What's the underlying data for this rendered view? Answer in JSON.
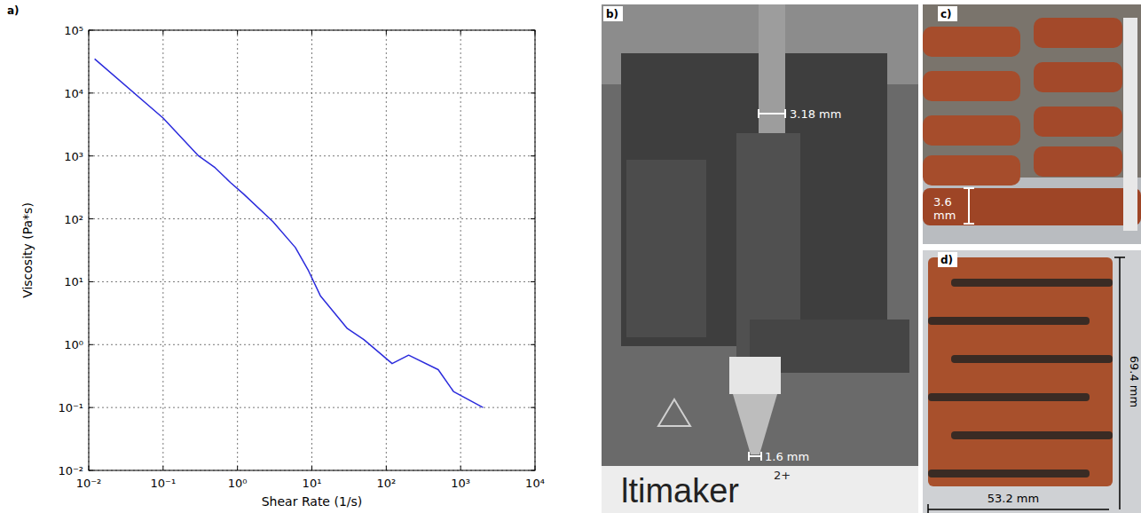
{
  "chart_data": {
    "type": "line",
    "panel_label": "a)",
    "x_label": "Shear Rate (1/s)",
    "y_label": "Viscosity (Pa*s)",
    "log": true,
    "grid": true,
    "color": "#2b2bdc",
    "x": [
      0.012,
      0.1,
      0.3,
      0.5,
      0.8,
      1.2,
      3,
      6,
      9,
      13,
      30,
      50,
      120,
      200,
      500,
      800,
      2000
    ],
    "values": [
      35000,
      4000,
      1000,
      650,
      380,
      250,
      90,
      35,
      15,
      6,
      1.8,
      1.2,
      0.5,
      0.68,
      0.4,
      0.18,
      0.1
    ],
    "xlim": [
      0.01,
      10000
    ],
    "ylim": [
      0.01,
      100000
    ],
    "xticks": [
      {
        "value": 0.01,
        "label": "10⁻²"
      },
      {
        "value": 0.1,
        "label": "10⁻¹"
      },
      {
        "value": 1,
        "label": "10⁰"
      },
      {
        "value": 10,
        "label": "10¹"
      },
      {
        "value": 100,
        "label": "10²"
      },
      {
        "value": 1000,
        "label": "10³"
      },
      {
        "value": 10000,
        "label": "10⁴"
      }
    ],
    "yticks": [
      {
        "value": 0.01,
        "label": "10⁻²"
      },
      {
        "value": 0.1,
        "label": "10⁻¹"
      },
      {
        "value": 1,
        "label": "10⁰"
      },
      {
        "value": 10,
        "label": "10¹"
      },
      {
        "value": 100,
        "label": "10²"
      },
      {
        "value": 1000,
        "label": "10³"
      },
      {
        "value": 10000,
        "label": "10⁴"
      },
      {
        "value": 100000,
        "label": "10⁵"
      }
    ]
  },
  "figure": {
    "photos": [
      {
        "label": "b)",
        "annotations": [
          "3.18 mm",
          "1.6 mm"
        ],
        "texts": [
          "ltimaker",
          "2+"
        ]
      },
      {
        "label": "c)",
        "annotations": [
          "3.6 mm"
        ]
      },
      {
        "label": "d)",
        "annotations": [
          "69.4 mm",
          "53.2 mm"
        ]
      }
    ]
  }
}
